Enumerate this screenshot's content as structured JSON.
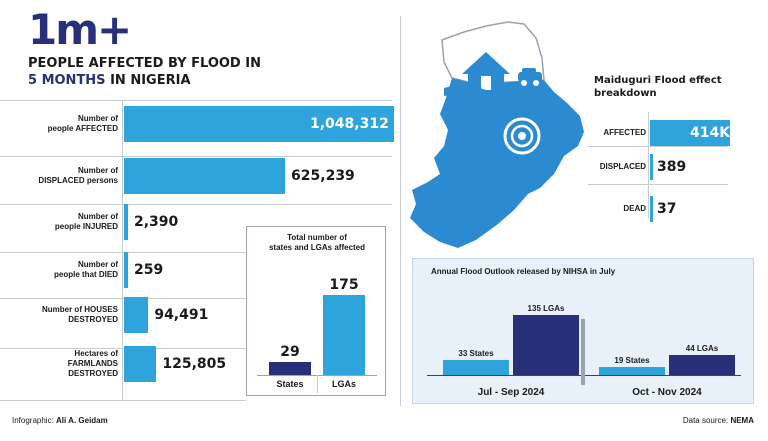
{
  "headline": {
    "big": "1m+",
    "line1": "PEOPLE AFFECTED BY FLOOD IN",
    "line2_highlight": "5 MONTHS",
    "line2_rest": " IN NIGERIA"
  },
  "colors": {
    "light_blue": "#2fa3dc",
    "navy": "#28307a",
    "map_blue": "#2b8ad0",
    "panel_bg": "#e8f1f9"
  },
  "chart_data": [
    {
      "type": "bar",
      "categories": [
        "Number of people AFFECTED",
        "Number of DISPLACED persons",
        "Number of people INJURED",
        "Number of people that DIED",
        "Number of HOUSES DESTROYED",
        "Hectares of FARMLANDS DESTROYED"
      ],
      "category_lines": [
        [
          "Number of",
          "people AFFECTED"
        ],
        [
          "Number of",
          "DISPLACED persons"
        ],
        [
          "Number of",
          "people INJURED"
        ],
        [
          "Number of",
          "people that DIED"
        ],
        [
          "Number of HOUSES",
          "DESTROYED"
        ],
        [
          "Hectares of",
          "FARMLANDS",
          "DESTROYED"
        ]
      ],
      "values": [
        1048312,
        625239,
        2390,
        259,
        94491,
        125805
      ],
      "labels": [
        "1,048,312",
        "625,239",
        "2,390",
        "259",
        "94,491",
        "125,805"
      ],
      "orientation": "horizontal"
    },
    {
      "type": "bar",
      "title": "Total number of states and LGAs affected",
      "title_lines": [
        "Total number of",
        "states and LGAs affected"
      ],
      "categories": [
        "States",
        "LGAs"
      ],
      "values": [
        29,
        175
      ],
      "labels": [
        "29",
        "175"
      ],
      "ylim": [
        0,
        175
      ]
    },
    {
      "type": "bar",
      "title": "Maiduguri Flood effect breakdown",
      "title_lines": [
        "Maiduguri Flood effect",
        "breakdown"
      ],
      "categories": [
        "AFFECTED",
        "DISPLACED",
        "DEAD"
      ],
      "values": [
        414000,
        389,
        37
      ],
      "labels": [
        "414K",
        "389",
        "37"
      ],
      "orientation": "horizontal"
    },
    {
      "type": "bar",
      "title": "Annual Flood Outlook released by NIHSA in July",
      "categories": [
        "Jul - Sep 2024",
        "Oct - Nov 2024"
      ],
      "series": [
        {
          "name": "States",
          "values": [
            33,
            19
          ],
          "labels": [
            "33 States",
            "19 States"
          ]
        },
        {
          "name": "LGAs",
          "values": [
            135,
            44
          ],
          "labels": [
            "135 LGAs",
            "44 LGAs"
          ]
        }
      ],
      "ylim": [
        0,
        135
      ]
    }
  ],
  "footer": {
    "credit_prefix": "Infographic: ",
    "credit_name": "Ali A. Geidam",
    "source_prefix": "Data source: ",
    "source_name": "NEMA"
  }
}
